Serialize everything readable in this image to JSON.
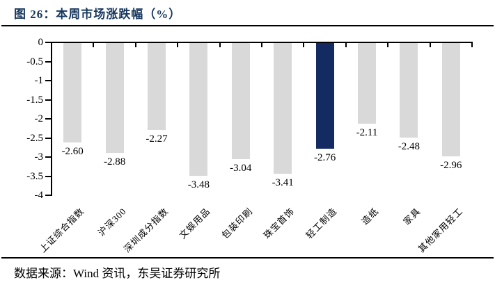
{
  "header": {
    "title": "图 26：本周市场涨跌幅（%）"
  },
  "footer": {
    "source": "数据来源：Wind 资讯，东吴证券研究所"
  },
  "colors": {
    "title": "#17375e",
    "axis": "#000000",
    "bar_default": "#d9d9d9",
    "bar_highlight": "#142a63"
  },
  "chart_data": {
    "type": "bar",
    "title": "本周市场涨跌幅（%）",
    "xlabel": "",
    "ylabel": "",
    "categories": [
      "上证综合指数",
      "沪深300",
      "深圳成分指数",
      "文娱用品",
      "包装印刷",
      "珠宝首饰",
      "轻工制造",
      "造纸",
      "家具",
      "其他家用轻工"
    ],
    "values": [
      -2.6,
      -2.88,
      -2.27,
      -3.48,
      -3.04,
      -3.41,
      -2.76,
      -2.11,
      -2.48,
      -2.96
    ],
    "data_labels": [
      "-2.60",
      "-2.88",
      "-2.27",
      "-3.48",
      "-3.04",
      "-3.41",
      "-2.76",
      "-2.11",
      "-2.48",
      "-2.96"
    ],
    "highlight_index": 6,
    "highlight_category": "轻工制造",
    "ylim": [
      -4,
      0
    ],
    "yticks": [
      0,
      -0.5,
      -1,
      -1.5,
      -2,
      -2.5,
      -3,
      -3.5,
      -4
    ],
    "ytick_labels": [
      "0",
      "-0.5",
      "-1",
      "-1.5",
      "-2",
      "-2.5",
      "-3",
      "-3.5",
      "-4"
    ],
    "grid": false,
    "legend": "none",
    "bar_orientation": "vertical-negative"
  }
}
